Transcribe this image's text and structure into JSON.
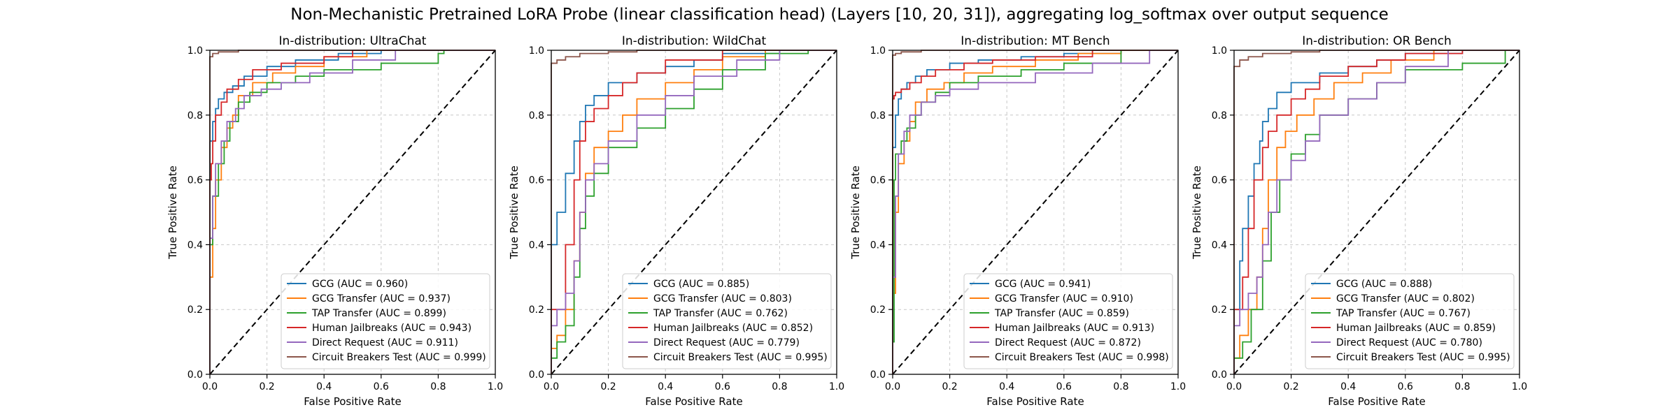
{
  "figure": {
    "suptitle": "Non-Mechanistic Pretrained LoRA Probe (linear classification head) (Layers [10, 20, 31]), aggregating log_softmax over output sequence"
  },
  "colors": {
    "GCG": "#1f77b4",
    "GCG Transfer": "#ff7f0e",
    "TAP Transfer": "#2ca02c",
    "Human Jailbreaks": "#d62728",
    "Direct Request": "#9467bd",
    "Circuit Breakers Test": "#8c564b",
    "diagonal": "#000000",
    "grid": "#b0b0b0"
  },
  "chart_data": [
    {
      "type": "line",
      "title": "In-distribution: UltraChat",
      "xlabel": "False Positive Rate",
      "ylabel": "True Positive Rate",
      "xlim": [
        0,
        1
      ],
      "ylim": [
        0,
        1
      ],
      "xticks": [
        "0.0",
        "0.2",
        "0.4",
        "0.6",
        "0.8",
        "1.0"
      ],
      "yticks": [
        "0.0",
        "0.2",
        "0.4",
        "0.6",
        "0.8",
        "1.0"
      ],
      "grid": true,
      "legend_position": "lower-right",
      "series": [
        {
          "name": "GCG",
          "auc": "0.960",
          "x": [
            0,
            0,
            0.01,
            0.02,
            0.03,
            0.05,
            0.08,
            0.12,
            0.2,
            0.3,
            0.45,
            0.6,
            1
          ],
          "y": [
            0,
            0.62,
            0.72,
            0.78,
            0.82,
            0.85,
            0.87,
            0.89,
            0.92,
            0.95,
            0.97,
            0.99,
            1
          ]
        },
        {
          "name": "GCG Transfer",
          "auc": "0.937",
          "x": [
            0,
            0.01,
            0.02,
            0.04,
            0.06,
            0.08,
            0.1,
            0.15,
            0.22,
            0.3,
            0.4,
            0.55,
            0.7,
            1
          ],
          "y": [
            0,
            0.3,
            0.45,
            0.6,
            0.7,
            0.76,
            0.8,
            0.86,
            0.9,
            0.93,
            0.95,
            0.98,
            1,
            1
          ]
        },
        {
          "name": "TAP Transfer",
          "auc": "0.899",
          "x": [
            0,
            0.01,
            0.03,
            0.05,
            0.07,
            0.1,
            0.14,
            0.2,
            0.3,
            0.4,
            0.6,
            0.8,
            0.82,
            1
          ],
          "y": [
            0,
            0.4,
            0.55,
            0.65,
            0.72,
            0.78,
            0.84,
            0.87,
            0.9,
            0.92,
            0.94,
            0.96,
            0.99,
            1
          ]
        },
        {
          "name": "Human Jailbreaks",
          "auc": "0.943",
          "x": [
            0,
            0.005,
            0.01,
            0.02,
            0.04,
            0.06,
            0.1,
            0.15,
            0.25,
            0.4,
            0.5,
            1
          ],
          "y": [
            0,
            0.6,
            0.65,
            0.72,
            0.8,
            0.84,
            0.88,
            0.91,
            0.94,
            0.96,
            0.98,
            1
          ]
        },
        {
          "name": "Direct Request",
          "auc": "0.911",
          "x": [
            0,
            0.01,
            0.02,
            0.04,
            0.06,
            0.09,
            0.12,
            0.18,
            0.25,
            0.35,
            0.5,
            0.65,
            1
          ],
          "y": [
            0,
            0.42,
            0.55,
            0.65,
            0.72,
            0.78,
            0.82,
            0.86,
            0.88,
            0.9,
            0.93,
            0.97,
            1
          ]
        },
        {
          "name": "Circuit Breakers Test",
          "auc": "0.999",
          "x": [
            0,
            0,
            0.01,
            0.03,
            0.1,
            0.3,
            1
          ],
          "y": [
            0,
            0.97,
            0.98,
            0.99,
            0.995,
            1,
            1
          ]
        }
      ]
    },
    {
      "type": "line",
      "title": "In-distribution: WildChat",
      "xlabel": "False Positive Rate",
      "ylabel": "True Positive Rate",
      "xlim": [
        0,
        1
      ],
      "ylim": [
        0,
        1
      ],
      "xticks": [
        "0.0",
        "0.2",
        "0.4",
        "0.6",
        "0.8",
        "1.0"
      ],
      "yticks": [
        "0.0",
        "0.2",
        "0.4",
        "0.6",
        "0.8",
        "1.0"
      ],
      "grid": true,
      "legend_position": "lower-right",
      "series": [
        {
          "name": "GCG",
          "auc": "0.885",
          "x": [
            0,
            0,
            0.02,
            0.05,
            0.08,
            0.1,
            0.12,
            0.15,
            0.2,
            0.3,
            0.4,
            0.5,
            0.6,
            0.8,
            1
          ],
          "y": [
            0,
            0.3,
            0.4,
            0.5,
            0.62,
            0.72,
            0.78,
            0.83,
            0.86,
            0.9,
            0.93,
            0.95,
            0.97,
            0.99,
            1
          ]
        },
        {
          "name": "GCG Transfer",
          "auc": "0.803",
          "x": [
            0,
            0.02,
            0.05,
            0.08,
            0.1,
            0.12,
            0.15,
            0.2,
            0.25,
            0.3,
            0.4,
            0.5,
            0.6,
            0.75,
            1
          ],
          "y": [
            0,
            0.08,
            0.12,
            0.2,
            0.35,
            0.5,
            0.62,
            0.7,
            0.75,
            0.8,
            0.85,
            0.9,
            0.94,
            0.98,
            1
          ]
        },
        {
          "name": "TAP Transfer",
          "auc": "0.762",
          "x": [
            0,
            0.02,
            0.05,
            0.08,
            0.1,
            0.12,
            0.15,
            0.2,
            0.3,
            0.4,
            0.5,
            0.6,
            0.75,
            0.9,
            1
          ],
          "y": [
            0,
            0.05,
            0.1,
            0.15,
            0.3,
            0.45,
            0.55,
            0.62,
            0.7,
            0.76,
            0.82,
            0.88,
            0.94,
            0.99,
            1
          ]
        },
        {
          "name": "Human Jailbreaks",
          "auc": "0.852",
          "x": [
            0,
            0.05,
            0.08,
            0.1,
            0.12,
            0.15,
            0.2,
            0.25,
            0.3,
            0.4,
            0.6,
            1
          ],
          "y": [
            0,
            0.2,
            0.4,
            0.6,
            0.72,
            0.78,
            0.82,
            0.86,
            0.9,
            0.93,
            0.97,
            1
          ]
        },
        {
          "name": "Direct Request",
          "auc": "0.779",
          "x": [
            0,
            0.02,
            0.05,
            0.08,
            0.1,
            0.12,
            0.15,
            0.2,
            0.3,
            0.4,
            0.5,
            0.65,
            0.8,
            1
          ],
          "y": [
            0,
            0.15,
            0.2,
            0.25,
            0.35,
            0.5,
            0.6,
            0.65,
            0.72,
            0.8,
            0.86,
            0.92,
            0.97,
            1
          ]
        },
        {
          "name": "Circuit Breakers Test",
          "auc": "0.995",
          "x": [
            0,
            0,
            0.02,
            0.05,
            0.1,
            0.2,
            0.3,
            0.5,
            1
          ],
          "y": [
            0,
            0.95,
            0.96,
            0.97,
            0.98,
            0.99,
            0.995,
            1,
            1
          ]
        }
      ]
    },
    {
      "type": "line",
      "title": "In-distribution: MT Bench",
      "xlabel": "False Positive Rate",
      "ylabel": "True Positive Rate",
      "xlim": [
        0,
        1
      ],
      "ylim": [
        0,
        1
      ],
      "xticks": [
        "0.0",
        "0.2",
        "0.4",
        "0.6",
        "0.8",
        "1.0"
      ],
      "yticks": [
        "0.0",
        "0.2",
        "0.4",
        "0.6",
        "0.8",
        "1.0"
      ],
      "grid": true,
      "legend_position": "lower-right",
      "series": [
        {
          "name": "GCG",
          "auc": "0.941",
          "x": [
            0,
            0.01,
            0.02,
            0.03,
            0.05,
            0.08,
            0.12,
            0.2,
            0.3,
            0.45,
            0.6,
            0.8,
            1
          ],
          "y": [
            0,
            0.7,
            0.8,
            0.85,
            0.88,
            0.9,
            0.92,
            0.94,
            0.96,
            0.97,
            0.98,
            0.99,
            1
          ]
        },
        {
          "name": "GCG Transfer",
          "auc": "0.910",
          "x": [
            0,
            0.01,
            0.02,
            0.04,
            0.06,
            0.08,
            0.12,
            0.18,
            0.25,
            0.35,
            0.5,
            0.65,
            0.8,
            1
          ],
          "y": [
            0,
            0.25,
            0.5,
            0.65,
            0.72,
            0.78,
            0.84,
            0.88,
            0.9,
            0.93,
            0.95,
            0.97,
            0.99,
            1
          ]
        },
        {
          "name": "TAP Transfer",
          "auc": "0.859",
          "x": [
            0,
            0.005,
            0.01,
            0.03,
            0.05,
            0.08,
            0.1,
            0.15,
            0.2,
            0.3,
            0.45,
            0.6,
            0.8,
            1
          ],
          "y": [
            0,
            0.1,
            0.6,
            0.68,
            0.72,
            0.76,
            0.8,
            0.84,
            0.87,
            0.9,
            0.92,
            0.94,
            0.96,
            1
          ]
        },
        {
          "name": "Human Jailbreaks",
          "auc": "0.913",
          "x": [
            0,
            0.005,
            0.01,
            0.03,
            0.06,
            0.1,
            0.15,
            0.25,
            0.35,
            0.5,
            0.7,
            1
          ],
          "y": [
            0,
            0.85,
            0.86,
            0.87,
            0.88,
            0.9,
            0.92,
            0.94,
            0.96,
            0.97,
            0.98,
            1
          ]
        },
        {
          "name": "Direct Request",
          "auc": "0.872",
          "x": [
            0,
            0.01,
            0.02,
            0.04,
            0.06,
            0.1,
            0.15,
            0.2,
            0.3,
            0.5,
            0.7,
            0.9,
            1
          ],
          "y": [
            0,
            0.3,
            0.55,
            0.68,
            0.75,
            0.8,
            0.84,
            0.86,
            0.88,
            0.9,
            0.93,
            0.96,
            1
          ]
        },
        {
          "name": "Circuit Breakers Test",
          "auc": "0.998",
          "x": [
            0,
            0,
            0.01,
            0.03,
            0.1,
            0.2,
            1
          ],
          "y": [
            0,
            0.98,
            0.985,
            0.99,
            0.995,
            1,
            1
          ]
        }
      ]
    },
    {
      "type": "line",
      "title": "In-distribution: OR Bench",
      "xlabel": "False Positive Rate",
      "ylabel": "True Positive Rate",
      "xlim": [
        0,
        1
      ],
      "ylim": [
        0,
        1
      ],
      "xticks": [
        "0.0",
        "0.2",
        "0.4",
        "0.6",
        "0.8",
        "1.0"
      ],
      "yticks": [
        "0.0",
        "0.2",
        "0.4",
        "0.6",
        "0.8",
        "1.0"
      ],
      "grid": true,
      "legend_position": "lower-right",
      "series": [
        {
          "name": "GCG",
          "auc": "0.888",
          "x": [
            0,
            0.02,
            0.03,
            0.05,
            0.07,
            0.09,
            0.1,
            0.12,
            0.15,
            0.2,
            0.3,
            0.4,
            0.5,
            0.6,
            0.8,
            1
          ],
          "y": [
            0,
            0.2,
            0.35,
            0.45,
            0.55,
            0.65,
            0.72,
            0.78,
            0.82,
            0.87,
            0.9,
            0.93,
            0.95,
            0.97,
            0.99,
            1
          ]
        },
        {
          "name": "GCG Transfer",
          "auc": "0.802",
          "x": [
            0,
            0.02,
            0.05,
            0.08,
            0.1,
            0.12,
            0.15,
            0.18,
            0.22,
            0.28,
            0.35,
            0.45,
            0.55,
            0.7,
            1
          ],
          "y": [
            0,
            0.05,
            0.12,
            0.2,
            0.3,
            0.45,
            0.6,
            0.7,
            0.75,
            0.8,
            0.85,
            0.9,
            0.93,
            0.97,
            1
          ]
        },
        {
          "name": "TAP Transfer",
          "auc": "0.767",
          "x": [
            0,
            0.03,
            0.06,
            0.1,
            0.13,
            0.16,
            0.2,
            0.25,
            0.3,
            0.4,
            0.5,
            0.6,
            0.8,
            0.95,
            1
          ],
          "y": [
            0,
            0.05,
            0.1,
            0.2,
            0.35,
            0.5,
            0.6,
            0.68,
            0.74,
            0.8,
            0.85,
            0.9,
            0.94,
            0.96,
            1
          ]
        },
        {
          "name": "Human Jailbreaks",
          "auc": "0.859",
          "x": [
            0,
            0.03,
            0.05,
            0.07,
            0.1,
            0.12,
            0.15,
            0.2,
            0.25,
            0.3,
            0.4,
            0.5,
            0.6,
            0.8,
            1
          ],
          "y": [
            0,
            0.2,
            0.3,
            0.45,
            0.6,
            0.7,
            0.75,
            0.8,
            0.85,
            0.88,
            0.92,
            0.95,
            0.97,
            0.99,
            1
          ]
        },
        {
          "name": "Direct Request",
          "auc": "0.780",
          "x": [
            0,
            0.02,
            0.05,
            0.08,
            0.1,
            0.12,
            0.15,
            0.2,
            0.25,
            0.3,
            0.4,
            0.5,
            0.6,
            0.75,
            1
          ],
          "y": [
            0,
            0.15,
            0.2,
            0.25,
            0.3,
            0.4,
            0.5,
            0.6,
            0.66,
            0.72,
            0.8,
            0.85,
            0.9,
            0.95,
            1
          ]
        },
        {
          "name": "Circuit Breakers Test",
          "auc": "0.995",
          "x": [
            0,
            0,
            0.02,
            0.05,
            0.1,
            0.2,
            0.3,
            0.5,
            1
          ],
          "y": [
            0,
            0.93,
            0.95,
            0.97,
            0.98,
            0.99,
            0.995,
            1,
            1
          ]
        }
      ]
    }
  ]
}
